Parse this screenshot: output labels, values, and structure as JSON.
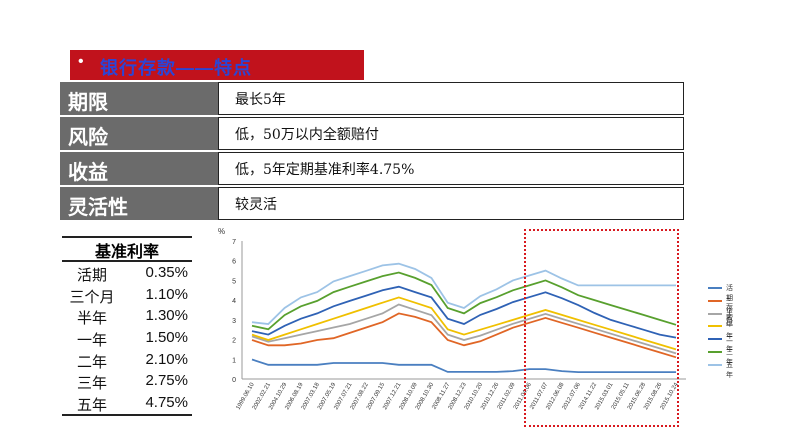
{
  "banner": {
    "bullet": "•",
    "title": "银行存款——特点"
  },
  "table": {
    "rows": [
      {
        "label": "期限",
        "value": "最长5年"
      },
      {
        "label": "风险",
        "value": "低，50万以内全额赔付"
      },
      {
        "label": "收益",
        "value": "低，5年定期基准利率4.75%"
      },
      {
        "label": "灵活性",
        "value": "较灵活"
      }
    ]
  },
  "rates": {
    "heading": "基准利率",
    "items": [
      {
        "name": "活期",
        "value": "0.35%"
      },
      {
        "name": "三个月",
        "value": "1.10%"
      },
      {
        "name": "半年",
        "value": "1.30%"
      },
      {
        "name": "一年",
        "value": "1.50%"
      },
      {
        "name": "二年",
        "value": "2.10%"
      },
      {
        "name": "三年",
        "value": "2.75%"
      },
      {
        "name": "五年",
        "value": "4.75%"
      }
    ]
  },
  "chart_data": {
    "type": "line",
    "unit_label": "%",
    "ylim": [
      0,
      7
    ],
    "yticks": [
      "0",
      "1",
      "2",
      "3",
      "4",
      "5",
      "6",
      "7"
    ],
    "x": [
      "1999.06.10",
      "2002.02.21",
      "2004.10.29",
      "2006.08.19",
      "2007.03.18",
      "2007.05.19",
      "2007.07.21",
      "2007.08.22",
      "2007.09.15",
      "2007.12.21",
      "2008.10.09",
      "2008.10.30",
      "2008.11.27",
      "2008.12.23",
      "2010.10.20",
      "2010.12.26",
      "2011.02.09",
      "2011.04.06",
      "2011.07.07",
      "2012.06.08",
      "2012.07.06",
      "2014.11.22",
      "2015.03.01",
      "2015.05.11",
      "2015.06.28",
      "2015.08.26",
      "2015.10.24"
    ],
    "legend_position": "right",
    "grid": false,
    "series": [
      {
        "name": "活期存款",
        "color": "#4a7fc0",
        "values": [
          0.99,
          0.72,
          0.72,
          0.72,
          0.72,
          0.81,
          0.81,
          0.81,
          0.81,
          0.72,
          0.72,
          0.72,
          0.36,
          0.36,
          0.36,
          0.36,
          0.4,
          0.5,
          0.5,
          0.4,
          0.35,
          0.35,
          0.35,
          0.35,
          0.35,
          0.35,
          0.35
        ]
      },
      {
        "name": "三个月",
        "color": "#e06626",
        "values": [
          1.98,
          1.71,
          1.71,
          1.8,
          1.98,
          2.07,
          2.34,
          2.61,
          2.88,
          3.33,
          3.15,
          2.88,
          1.98,
          1.71,
          1.91,
          2.25,
          2.6,
          2.85,
          3.1,
          2.85,
          2.6,
          2.35,
          2.1,
          1.85,
          1.6,
          1.35,
          1.1
        ]
      },
      {
        "name": "半年",
        "color": "#a6a6a6",
        "values": [
          2.16,
          1.89,
          2.07,
          2.25,
          2.43,
          2.61,
          2.79,
          3.06,
          3.33,
          3.78,
          3.51,
          3.24,
          2.25,
          1.98,
          2.2,
          2.5,
          2.8,
          3.05,
          3.3,
          3.05,
          2.8,
          2.55,
          2.3,
          2.05,
          1.8,
          1.55,
          1.3
        ]
      },
      {
        "name": "一年",
        "color": "#f0c000",
        "values": [
          2.25,
          1.98,
          2.25,
          2.52,
          2.79,
          3.06,
          3.33,
          3.6,
          3.87,
          4.14,
          3.87,
          3.6,
          2.52,
          2.25,
          2.5,
          2.75,
          3.0,
          3.25,
          3.5,
          3.25,
          3.0,
          2.75,
          2.5,
          2.25,
          2.0,
          1.75,
          1.5
        ]
      },
      {
        "name": "二年",
        "color": "#2f62b5",
        "values": [
          2.43,
          2.25,
          2.7,
          3.06,
          3.33,
          3.69,
          3.96,
          4.23,
          4.5,
          4.68,
          4.41,
          4.14,
          3.06,
          2.79,
          3.25,
          3.55,
          3.9,
          4.15,
          4.4,
          4.1,
          3.75,
          3.35,
          3.0,
          2.75,
          2.5,
          2.25,
          2.1
        ]
      },
      {
        "name": "三年",
        "color": "#58a02e",
        "values": [
          2.7,
          2.52,
          3.24,
          3.69,
          3.96,
          4.41,
          4.68,
          4.95,
          5.22,
          5.4,
          5.13,
          4.77,
          3.6,
          3.33,
          3.85,
          4.15,
          4.5,
          4.75,
          5.0,
          4.65,
          4.25,
          4.0,
          3.75,
          3.5,
          3.25,
          3.0,
          2.75
        ]
      },
      {
        "name": "五年",
        "color": "#9dc3e6",
        "values": [
          2.88,
          2.79,
          3.6,
          4.14,
          4.41,
          4.95,
          5.22,
          5.49,
          5.76,
          5.85,
          5.58,
          5.13,
          3.87,
          3.6,
          4.2,
          4.55,
          5.0,
          5.25,
          5.5,
          5.1,
          4.75,
          4.75,
          4.75,
          4.75,
          4.75,
          4.75,
          4.75
        ]
      }
    ]
  }
}
